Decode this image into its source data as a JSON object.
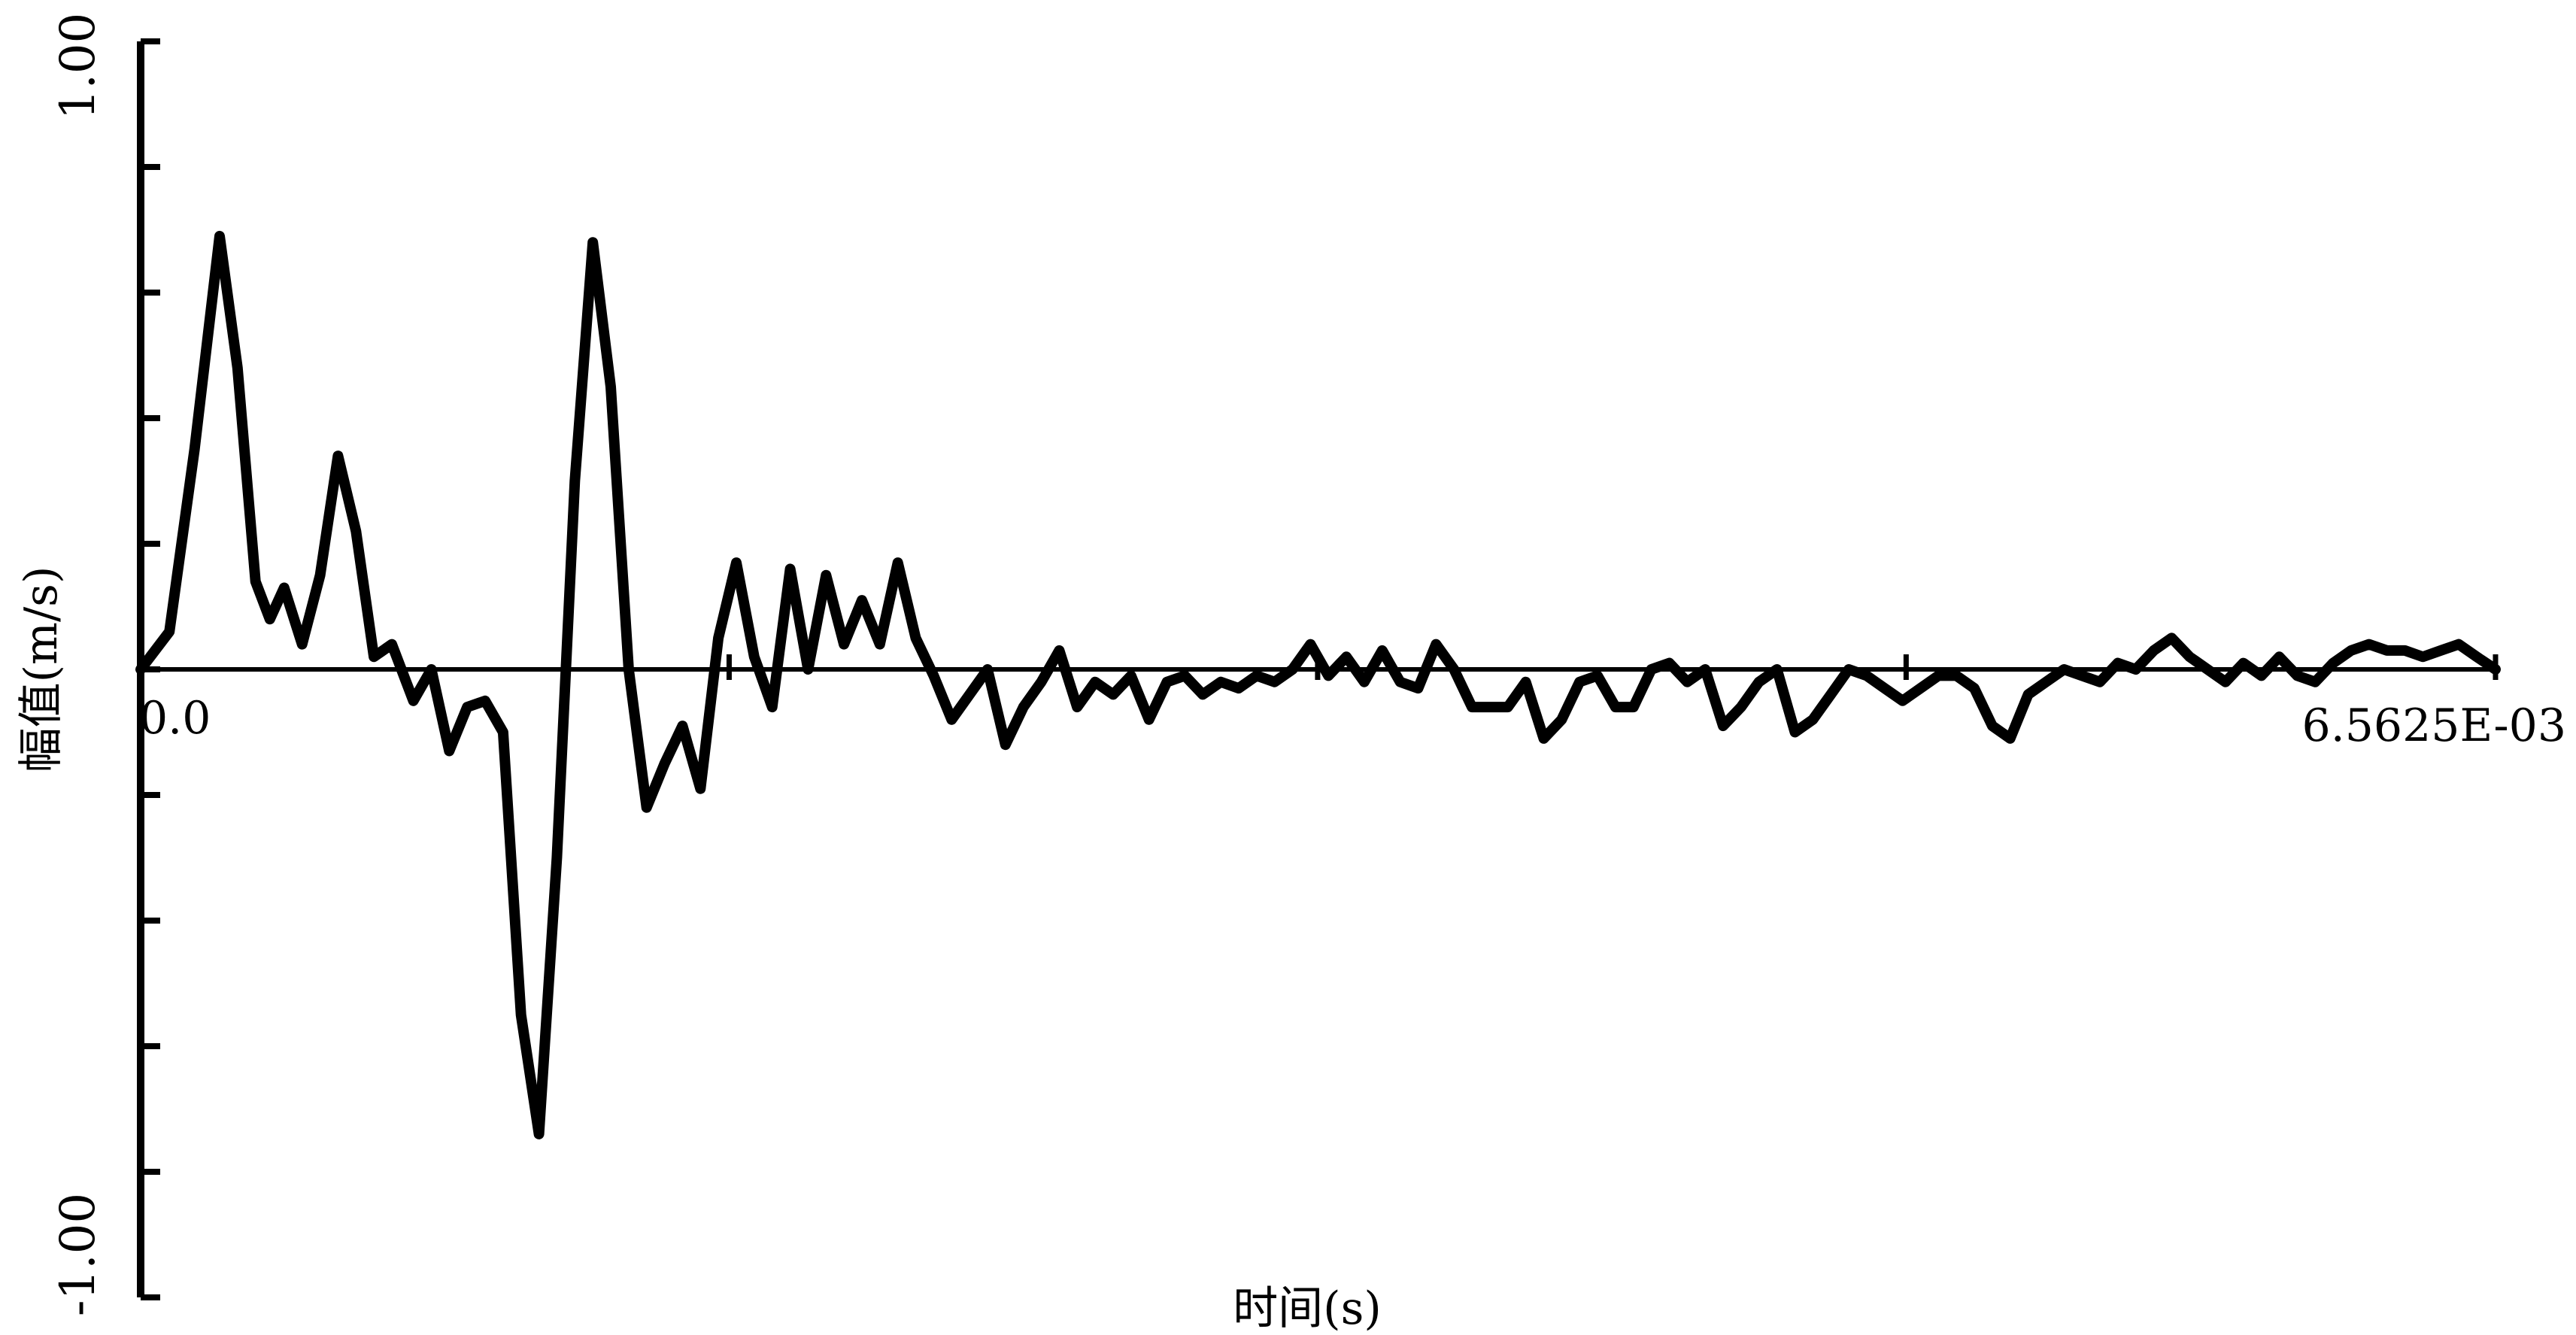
{
  "chart_data": {
    "type": "line",
    "xlabel": "时间(s)",
    "ylabel": "幅值(m/s)",
    "x_tick_labels": {
      "start": "0.0",
      "end": "6.5625E-03"
    },
    "y_tick_labels": {
      "top": "1.00",
      "bottom": "-1.00"
    },
    "xlim": [
      0,
      0.0065625
    ],
    "ylim": [
      -1.0,
      1.0
    ],
    "y_ticks": [
      -1.0,
      -0.8,
      -0.6,
      -0.4,
      -0.2,
      0.0,
      0.2,
      0.4,
      0.6,
      0.8,
      1.0
    ],
    "x_ticks": [
      0,
      0.00164,
      0.00328,
      0.00492,
      0.0065625
    ],
    "grid": false,
    "legend": "none",
    "line_color": "#000000",
    "series": [
      {
        "x": [
          0,
          8e-05,
          0.00015,
          0.00022,
          0.00027,
          0.00032,
          0.00036,
          0.0004,
          0.00045,
          0.0005,
          0.00055,
          0.0006,
          0.00065,
          0.0007,
          0.00076,
          0.00081,
          0.00086,
          0.00091,
          0.00096,
          0.00101,
          0.00106,
          0.00111,
          0.00116,
          0.00121,
          0.00126,
          0.00131,
          0.00136,
          0.00141,
          0.00146,
          0.00151,
          0.00156,
          0.00161,
          0.00166,
          0.00171,
          0.00176,
          0.00181,
          0.00186,
          0.00191,
          0.00196,
          0.00201,
          0.00206,
          0.00211,
          0.00216,
          0.00221,
          0.00226,
          0.00231,
          0.00236,
          0.00241,
          0.00246,
          0.00251,
          0.00256,
          0.00261,
          0.00266,
          0.00271,
          0.00276,
          0.00281,
          0.00286,
          0.00291,
          0.00296,
          0.00301,
          0.00306,
          0.00311,
          0.00316,
          0.00321,
          0.00326,
          0.00331,
          0.00336,
          0.00341,
          0.00346,
          0.00351,
          0.00356,
          0.00361,
          0.00366,
          0.00371,
          0.00376,
          0.00381,
          0.00386,
          0.00391,
          0.00396,
          0.00401,
          0.00406,
          0.00411,
          0.00416,
          0.00421,
          0.00426,
          0.00431,
          0.00436,
          0.00441,
          0.00446,
          0.00451,
          0.00456,
          0.00461,
          0.00466,
          0.00471,
          0.00476,
          0.00481,
          0.00486,
          0.00491,
          0.00496,
          0.00501,
          0.00506,
          0.00511,
          0.00516,
          0.00521,
          0.00526,
          0.00531,
          0.00536,
          0.00541,
          0.00546,
          0.00551,
          0.00556,
          0.00561,
          0.00566,
          0.00571,
          0.00576,
          0.00581,
          0.00586,
          0.00591,
          0.00596,
          0.00601,
          0.00606,
          0.00611,
          0.00616,
          0.00621,
          0.00626,
          0.00631,
          0.00636,
          0.00641,
          0.00646,
          0.00651,
          0.0065625
        ],
        "y": [
          0.0,
          0.06,
          0.35,
          0.69,
          0.48,
          0.14,
          0.08,
          0.13,
          0.04,
          0.15,
          0.34,
          0.22,
          0.02,
          0.04,
          -0.05,
          0.0,
          -0.13,
          -0.06,
          -0.05,
          -0.1,
          -0.55,
          -0.74,
          -0.3,
          0.3,
          0.68,
          0.45,
          0.0,
          -0.22,
          -0.15,
          -0.09,
          -0.19,
          0.05,
          0.17,
          0.02,
          -0.06,
          0.16,
          0.0,
          0.15,
          0.04,
          0.11,
          0.04,
          0.17,
          0.05,
          -0.01,
          -0.08,
          -0.04,
          0.0,
          -0.12,
          -0.06,
          -0.02,
          0.03,
          -0.06,
          -0.02,
          -0.04,
          -0.01,
          -0.08,
          -0.02,
          -0.01,
          -0.04,
          -0.02,
          -0.03,
          -0.01,
          -0.02,
          0.0,
          0.04,
          -0.01,
          0.02,
          -0.02,
          0.03,
          -0.02,
          -0.03,
          0.04,
          0.0,
          -0.06,
          -0.06,
          -0.06,
          -0.02,
          -0.11,
          -0.08,
          -0.02,
          -0.01,
          -0.06,
          -0.06,
          0.0,
          0.01,
          -0.02,
          0.0,
          -0.09,
          -0.06,
          -0.02,
          0.0,
          -0.1,
          -0.08,
          -0.04,
          0.0,
          -0.01,
          -0.03,
          -0.05,
          -0.03,
          -0.01,
          -0.01,
          -0.03,
          -0.09,
          -0.11,
          -0.04,
          -0.02,
          0.0,
          -0.01,
          -0.02,
          0.01,
          0.0,
          0.03,
          0.05,
          0.02,
          0.0,
          -0.02,
          0.01,
          -0.01,
          0.02,
          -0.01,
          -0.02,
          0.01,
          0.03,
          0.04,
          0.03,
          0.03,
          0.02,
          0.03,
          0.04,
          0.02,
          0.0
        ]
      }
    ]
  }
}
